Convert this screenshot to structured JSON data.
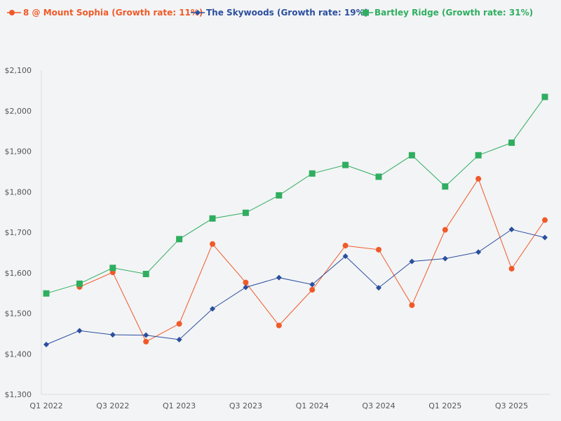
{
  "chart_data": {
    "type": "line",
    "title": "",
    "xlabel": "",
    "ylabel": "",
    "ylim": [
      1300,
      2100
    ],
    "y_ticks": [
      1300,
      1400,
      1500,
      1600,
      1700,
      1800,
      1900,
      2000,
      2100
    ],
    "y_tick_labels": [
      "$1,300",
      "$1,400",
      "$1,500",
      "$1,600",
      "$1,700",
      "$1,800",
      "$1,900",
      "$2,000",
      "$2,100"
    ],
    "x": [
      "Q1 2022",
      "Q2 2022",
      "Q3 2022",
      "Q4 2022",
      "Q1 2023",
      "Q2 2023",
      "Q3 2023",
      "Q4 2023",
      "Q1 2024",
      "Q2 2024",
      "Q3 2024",
      "Q4 2024",
      "Q1 2025",
      "Q2 2025",
      "Q3 2025",
      "Q4 2025"
    ],
    "x_tick_labels": [
      "Q1 2022",
      "Q3 2022",
      "Q1 2023",
      "Q3 2023",
      "Q1 2024",
      "Q3 2024",
      "Q1 2025",
      "Q3 2025"
    ],
    "grid": false,
    "legend_position": "top-left",
    "series": [
      {
        "name": "8 @ Mount Sophia (Growth rate: 11%)",
        "color": "#f05a28",
        "marker": "circle",
        "values": [
          null,
          1565,
          1601,
          1430,
          1474,
          1671,
          1576,
          1470,
          1558,
          1667,
          1657,
          1520,
          1706,
          1832,
          1610,
          1730
        ]
      },
      {
        "name": "The Skywoods (Growth rate: 19%)",
        "color": "#2b4f9e",
        "marker": "diamond",
        "values": [
          1423,
          1457,
          1447,
          1446,
          1435,
          1511,
          1564,
          1588,
          1571,
          1641,
          1563,
          1628,
          1635,
          1651,
          1707,
          1687
        ]
      },
      {
        "name": "Bartley Ridge (Growth rate: 31%)",
        "color": "#2fae5f",
        "marker": "square",
        "values": [
          1549,
          1573,
          1612,
          1597,
          1683,
          1734,
          1748,
          1791,
          1845,
          1866,
          1837,
          1890,
          1813,
          1890,
          1921,
          2034
        ]
      }
    ]
  }
}
